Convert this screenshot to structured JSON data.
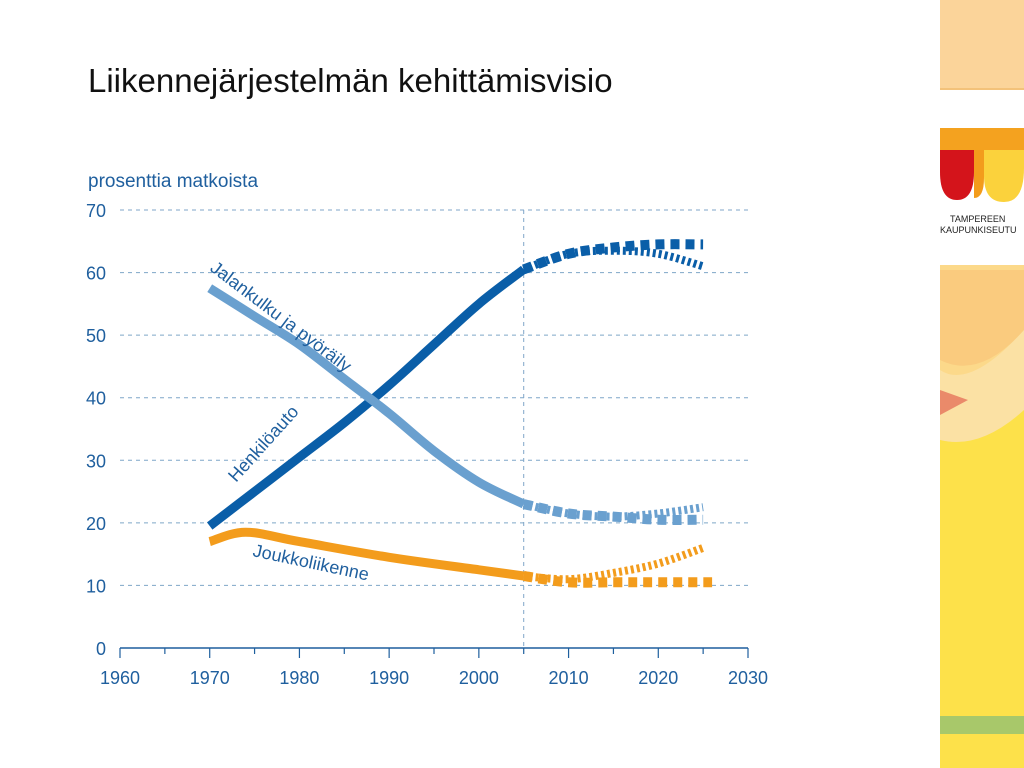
{
  "slide": {
    "title": "Liikennejärjestelmän kehittämisvisio"
  },
  "logo": {
    "line1": "TAMPEREEN",
    "line2": "KAUPUNKISEUTU"
  },
  "colors": {
    "car": "#0a5ea8",
    "walkcycle": "#6aa0cf",
    "transit": "#f39c1c",
    "axis_text": "#1f5f9e",
    "grid": "#7fa6c8"
  },
  "chart_data": {
    "type": "line",
    "ylabel": "prosenttia matkoista",
    "xlim": [
      1960,
      2030
    ],
    "ylim": [
      0,
      70
    ],
    "xticks": [
      1960,
      1970,
      1980,
      1990,
      2000,
      2010,
      2020,
      2030
    ],
    "yticks": [
      0,
      10,
      20,
      30,
      40,
      50,
      60,
      70
    ],
    "grid": "horizontal dashed",
    "vertical_marker_x": 2005,
    "series": [
      {
        "name": "Henkilöauto",
        "color": "#0a5ea8",
        "observed": [
          [
            1970,
            19.5
          ],
          [
            1975,
            25
          ],
          [
            1980,
            30.5
          ],
          [
            1985,
            36
          ],
          [
            1990,
            42
          ],
          [
            1995,
            48.5
          ],
          [
            2000,
            55
          ],
          [
            2005,
            60.5
          ]
        ],
        "scenarios": [
          {
            "style": "dashed",
            "points": [
              [
                2005,
                60.5
              ],
              [
                2010,
                63
              ],
              [
                2015,
                64
              ],
              [
                2020,
                64.5
              ],
              [
                2025,
                64.5
              ]
            ]
          },
          {
            "style": "dotted",
            "points": [
              [
                2005,
                60.5
              ],
              [
                2010,
                63
              ],
              [
                2015,
                63.5
              ],
              [
                2020,
                63
              ],
              [
                2025,
                61
              ]
            ]
          }
        ]
      },
      {
        "name": "Jalankulku ja pyöräily",
        "color": "#6aa0cf",
        "observed": [
          [
            1970,
            57.5
          ],
          [
            1975,
            53
          ],
          [
            1980,
            48.5
          ],
          [
            1985,
            43
          ],
          [
            1990,
            37.5
          ],
          [
            1995,
            31.5
          ],
          [
            2000,
            26.5
          ],
          [
            2005,
            23
          ]
        ],
        "scenarios": [
          {
            "style": "dashed",
            "points": [
              [
                2005,
                23
              ],
              [
                2010,
                21.5
              ],
              [
                2015,
                21
              ],
              [
                2020,
                20.5
              ],
              [
                2025,
                20.5
              ]
            ]
          },
          {
            "style": "dotted",
            "points": [
              [
                2005,
                23
              ],
              [
                2010,
                21.5
              ],
              [
                2015,
                21
              ],
              [
                2020,
                21.5
              ],
              [
                2025,
                22.5
              ]
            ]
          }
        ]
      },
      {
        "name": "Joukkoliikenne",
        "color": "#f39c1c",
        "observed": [
          [
            1970,
            17
          ],
          [
            1974,
            18.5
          ],
          [
            1980,
            17
          ],
          [
            1990,
            14.5
          ],
          [
            2000,
            12.5
          ],
          [
            2005,
            11.5
          ]
        ],
        "scenarios": [
          {
            "style": "dashed",
            "points": [
              [
                2005,
                11.5
              ],
              [
                2010,
                10.5
              ],
              [
                2015,
                10.5
              ],
              [
                2020,
                10.5
              ],
              [
                2026,
                10.5
              ]
            ]
          },
          {
            "style": "dotted",
            "points": [
              [
                2005,
                11.5
              ],
              [
                2010,
                11
              ],
              [
                2015,
                12
              ],
              [
                2020,
                13.5
              ],
              [
                2025,
                16
              ]
            ]
          }
        ]
      }
    ]
  }
}
